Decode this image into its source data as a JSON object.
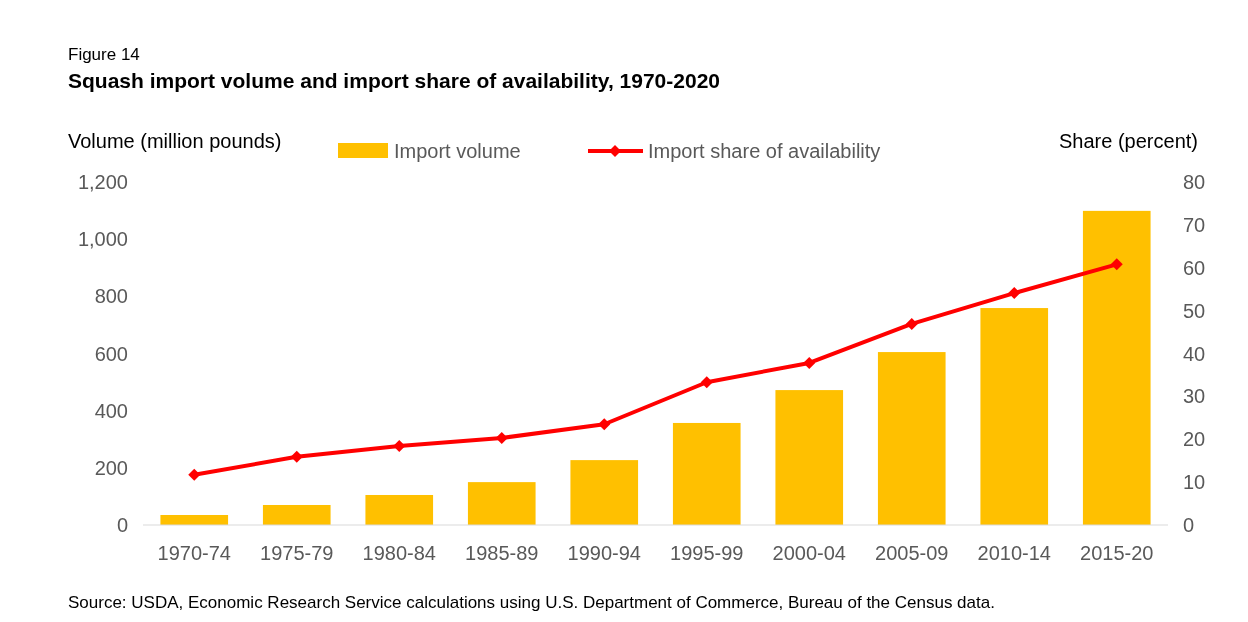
{
  "chart_data": {
    "type": "bar",
    "title": "Squash import volume and import share of availability, 1970-2020",
    "subtitle": "Figure 14",
    "ylabel": "Volume (million pounds)",
    "y2label": "Share (percent)",
    "categories": [
      "1970-74",
      "1975-79",
      "1980-84",
      "1985-89",
      "1990-94",
      "1995-99",
      "2000-04",
      "2005-09",
      "2010-14",
      "2015-20"
    ],
    "series": [
      {
        "name": "Import volume",
        "color": "#ffc000",
        "values": [
          35,
          70,
          105,
          150,
          227,
          357,
          472,
          605,
          759,
          1099
        ]
      },
      {
        "name": "Import share of availability",
        "type": "line",
        "axis": "y2",
        "color": "#ff0000",
        "marker": "diamond",
        "values": [
          11.7,
          15.9,
          18.4,
          20.3,
          23.5,
          33.3,
          37.8,
          46.9,
          54.1,
          60.8
        ]
      }
    ],
    "ylim": [
      0,
      1200
    ],
    "yticks": [
      0,
      {
        "value": 200,
        "label": "200"
      },
      {
        "value": 400,
        "label": "400"
      },
      {
        "value": 600,
        "label": "600"
      },
      {
        "value": 800,
        "label": "800"
      },
      {
        "value": 1000,
        "label": "1,000"
      },
      {
        "value": 1200,
        "label": "1,200"
      }
    ],
    "y2lim": [
      0,
      80
    ],
    "y2ticks": [
      0,
      10,
      20,
      30,
      40,
      50,
      60,
      70,
      80
    ],
    "legend": "top",
    "grid": false,
    "annotations": [
      "Source: USDA, Economic Research Service calculations using U.S. Department of Commerce, Bureau of the Census data."
    ]
  }
}
